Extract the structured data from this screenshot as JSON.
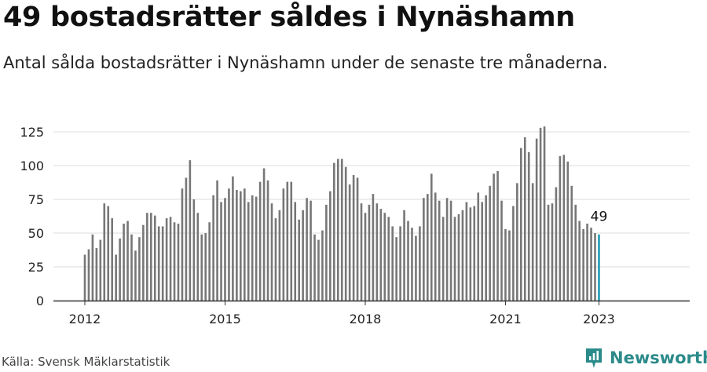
{
  "header": {
    "title": "49 bostadsrätter såldes i Nynäshamn",
    "subtitle": "Antal sålda bostadsrätter i Nynäshamn under de senaste tre månaderna."
  },
  "footer": {
    "source": "Källa: Svensk Mäklarstatistik",
    "brand": "Newsworthy"
  },
  "icons": {
    "brand_logo": "newsworthy-logo-icon"
  },
  "colors": {
    "bar": "#777777",
    "highlight_bar": "#1f9bb5",
    "grid": "#dddddd",
    "axis": "#333333",
    "brand": "#2b8a8a"
  },
  "chart_data": {
    "type": "bar",
    "title": "",
    "xlabel": "",
    "ylabel": "",
    "ylim": [
      0,
      125
    ],
    "yticks": [
      0,
      25,
      50,
      75,
      100,
      125
    ],
    "xticks": [
      {
        "label": "2012",
        "date": "2012-01"
      },
      {
        "label": "2015",
        "date": "2015-01"
      },
      {
        "label": "2018",
        "date": "2018-01"
      },
      {
        "label": "2021",
        "date": "2021-01"
      },
      {
        "label": "2023",
        "date": "2023-01"
      }
    ],
    "grid": true,
    "categories": [
      "2012-01",
      "2012-02",
      "2012-03",
      "2012-04",
      "2012-05",
      "2012-06",
      "2012-07",
      "2012-08",
      "2012-09",
      "2012-10",
      "2012-11",
      "2012-12",
      "2013-01",
      "2013-02",
      "2013-03",
      "2013-04",
      "2013-05",
      "2013-06",
      "2013-07",
      "2013-08",
      "2013-09",
      "2013-10",
      "2013-11",
      "2013-12",
      "2014-01",
      "2014-02",
      "2014-03",
      "2014-04",
      "2014-05",
      "2014-06",
      "2014-07",
      "2014-08",
      "2014-09",
      "2014-10",
      "2014-11",
      "2014-12",
      "2015-01",
      "2015-02",
      "2015-03",
      "2015-04",
      "2015-05",
      "2015-06",
      "2015-07",
      "2015-08",
      "2015-09",
      "2015-10",
      "2015-11",
      "2015-12",
      "2016-01",
      "2016-02",
      "2016-03",
      "2016-04",
      "2016-05",
      "2016-06",
      "2016-07",
      "2016-08",
      "2016-09",
      "2016-10",
      "2016-11",
      "2016-12",
      "2017-01",
      "2017-02",
      "2017-03",
      "2017-04",
      "2017-05",
      "2017-06",
      "2017-07",
      "2017-08",
      "2017-09",
      "2017-10",
      "2017-11",
      "2017-12",
      "2018-01",
      "2018-02",
      "2018-03",
      "2018-04",
      "2018-05",
      "2018-06",
      "2018-07",
      "2018-08",
      "2018-09",
      "2018-10",
      "2018-11",
      "2018-12",
      "2019-01",
      "2019-02",
      "2019-03",
      "2019-04",
      "2019-05",
      "2019-06",
      "2019-07",
      "2019-08",
      "2019-09",
      "2019-10",
      "2019-11",
      "2019-12",
      "2020-01",
      "2020-02",
      "2020-03",
      "2020-04",
      "2020-05",
      "2020-06",
      "2020-07",
      "2020-08",
      "2020-09",
      "2020-10",
      "2020-11",
      "2020-12",
      "2021-01",
      "2021-02",
      "2021-03",
      "2021-04",
      "2021-05",
      "2021-06",
      "2021-07",
      "2021-08",
      "2021-09",
      "2021-10",
      "2021-11",
      "2021-12",
      "2022-01",
      "2022-02",
      "2022-03",
      "2022-04",
      "2022-05",
      "2022-06",
      "2022-07",
      "2022-08",
      "2022-09",
      "2022-10",
      "2022-11",
      "2022-12",
      "2023-01"
    ],
    "series": [
      {
        "values": [
          34,
          38,
          49,
          39,
          45,
          72,
          70,
          61,
          34,
          46,
          57,
          59,
          49,
          37,
          47,
          56,
          65,
          65,
          63,
          55,
          55,
          61,
          62,
          58,
          57,
          83,
          91,
          104,
          75,
          65,
          49,
          50,
          58,
          78,
          89,
          73,
          76,
          83,
          92,
          82,
          81,
          83,
          73,
          78,
          77,
          88,
          98,
          89,
          72,
          61,
          67,
          83,
          88,
          88,
          73,
          60,
          67,
          76,
          74,
          49,
          45,
          52,
          71,
          81,
          102,
          105,
          105,
          99,
          86,
          93,
          91,
          72,
          65,
          71,
          79,
          72,
          68,
          65,
          62,
          55,
          47,
          55,
          67,
          59,
          54,
          48,
          55,
          76,
          79,
          94,
          80,
          74,
          62,
          76,
          74,
          62,
          64,
          67,
          73,
          69,
          70,
          80,
          73,
          78,
          85,
          94,
          96,
          74,
          53,
          52,
          70,
          87,
          113,
          121,
          110,
          87,
          120,
          128,
          129,
          71,
          72,
          84,
          107,
          108,
          103,
          85,
          71,
          59,
          53,
          57,
          54,
          50,
          49
        ],
        "highlight_last": true
      }
    ],
    "annotations": [
      {
        "text": "49",
        "category": "2023-01",
        "value": 49
      }
    ]
  }
}
